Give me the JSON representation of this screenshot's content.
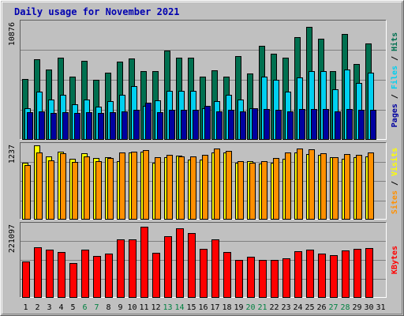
{
  "title": "Daily usage for November 2021",
  "colors": {
    "title": "#0000b0",
    "hits": "#007050",
    "files": "#00d0f0",
    "pages": "#0000a0",
    "visits": "#ffff00",
    "sites": "#ff9000",
    "kbytes": "#ff0000",
    "weekend_label": "#008040",
    "weekday_label": "#000000"
  },
  "chart_data": [
    {
      "type": "bar",
      "panel": "hits-files-pages",
      "ymax_label": "10876",
      "ylim": [
        0,
        10876
      ],
      "categories": [
        "1",
        "2",
        "3",
        "4",
        "5",
        "6",
        "7",
        "8",
        "9",
        "10",
        "11",
        "12",
        "13",
        "14",
        "15",
        "16",
        "17",
        "18",
        "19",
        "20",
        "21",
        "22",
        "23",
        "24",
        "25",
        "26",
        "27",
        "28",
        "29",
        "30",
        "31"
      ],
      "weekend_days": [
        "6",
        "7",
        "13",
        "14",
        "20",
        "21",
        "27",
        "28"
      ],
      "legend": [
        "Pages",
        "Files",
        "Hits"
      ],
      "series": [
        {
          "name": "Hits",
          "values": [
            5600,
            7400,
            6500,
            7600,
            5800,
            7300,
            5500,
            6200,
            7200,
            7500,
            6300,
            6300,
            8200,
            7600,
            7600,
            5800,
            6400,
            5800,
            7700,
            6100,
            8700,
            7900,
            7600,
            9500,
            10400,
            9300,
            6300,
            9800,
            7000,
            8900,
            0
          ]
        },
        {
          "name": "Files",
          "values": [
            2900,
            4400,
            3700,
            4100,
            3200,
            3700,
            3000,
            3500,
            4100,
            4900,
            3100,
            3600,
            4500,
            4500,
            4500,
            2900,
            3500,
            4100,
            3700,
            2900,
            5800,
            5500,
            4400,
            5700,
            6300,
            6300,
            4600,
            6500,
            5200,
            6200,
            0
          ]
        },
        {
          "name": "Pages",
          "values": [
            2500,
            2600,
            2400,
            2500,
            2400,
            2500,
            2400,
            2500,
            2600,
            2700,
            3400,
            2500,
            2700,
            2700,
            2700,
            3100,
            2600,
            2700,
            2600,
            2900,
            2800,
            2700,
            2600,
            2800,
            2800,
            2800,
            2600,
            2800,
            2700,
            2700,
            0
          ]
        }
      ]
    },
    {
      "type": "bar",
      "panel": "visits-sites",
      "ymax_label": "1237",
      "ylim": [
        0,
        1237
      ],
      "categories": [
        "1",
        "2",
        "3",
        "4",
        "5",
        "6",
        "7",
        "8",
        "9",
        "10",
        "11",
        "12",
        "13",
        "14",
        "15",
        "16",
        "17",
        "18",
        "19",
        "20",
        "21",
        "22",
        "23",
        "24",
        "25",
        "26",
        "27",
        "28",
        "29",
        "30",
        "31"
      ],
      "weekend_days": [
        "6",
        "7",
        "13",
        "14",
        "20",
        "21",
        "27",
        "28"
      ],
      "legend": [
        "Sites",
        "Visits"
      ],
      "series": [
        {
          "name": "Visits",
          "values": [
            930,
            1220,
            1040,
            1120,
            1000,
            1090,
            1010,
            1020,
            960,
            1110,
            1120,
            940,
            1030,
            1050,
            990,
            990,
            1110,
            1110,
            940,
            960,
            920,
            930,
            1000,
            1100,
            1080,
            1060,
            1030,
            1000,
            1030,
            1040,
            0
          ]
        },
        {
          "name": "Sites",
          "values": [
            890,
            1110,
            970,
            1090,
            950,
            1040,
            960,
            1010,
            1100,
            1120,
            1150,
            1030,
            1060,
            1040,
            1040,
            1060,
            1170,
            1130,
            960,
            940,
            960,
            1010,
            1110,
            1170,
            1160,
            1090,
            1030,
            1080,
            1070,
            1110,
            0
          ]
        }
      ]
    },
    {
      "type": "bar",
      "panel": "kbytes",
      "ymax_label": "221097",
      "ylim": [
        0,
        221097
      ],
      "categories": [
        "1",
        "2",
        "3",
        "4",
        "5",
        "6",
        "7",
        "8",
        "9",
        "10",
        "11",
        "12",
        "13",
        "14",
        "15",
        "16",
        "17",
        "18",
        "19",
        "20",
        "21",
        "22",
        "23",
        "24",
        "25",
        "26",
        "27",
        "28",
        "29",
        "30",
        "31"
      ],
      "weekend_days": [
        "6",
        "7",
        "13",
        "14",
        "20",
        "21",
        "27",
        "28"
      ],
      "legend": [
        "KBytes"
      ],
      "series": [
        {
          "name": "KBytes",
          "values": [
            107000,
            152000,
            144000,
            138000,
            103000,
            145000,
            126000,
            131000,
            175000,
            175000,
            213000,
            135000,
            185000,
            209000,
            195000,
            146000,
            175000,
            137000,
            112000,
            123000,
            112000,
            112000,
            117000,
            139000,
            145000,
            131000,
            128000,
            142000,
            146000,
            148000,
            0
          ]
        }
      ]
    }
  ]
}
